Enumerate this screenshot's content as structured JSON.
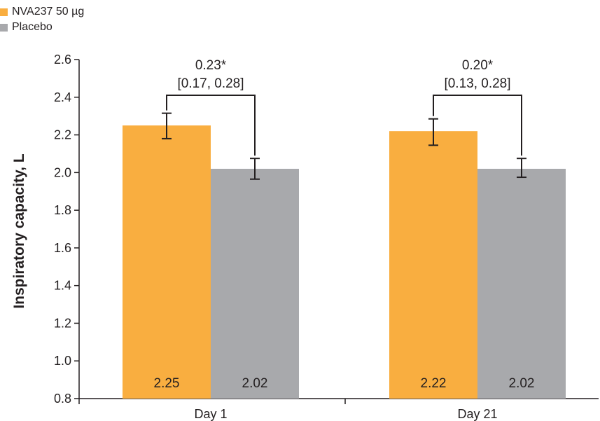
{
  "chart_data": {
    "type": "bar",
    "categories": [
      "Day 1",
      "Day 21"
    ],
    "series": [
      {
        "name": "NVA237 50 µg",
        "color": "#f9ae40",
        "values": [
          2.25,
          2.22
        ],
        "value_labels": [
          "2.25",
          "2.22"
        ],
        "error_low": [
          2.18,
          2.145
        ],
        "error_high": [
          2.315,
          2.285
        ]
      },
      {
        "name": "Placebo",
        "color": "#a8a9ac",
        "values": [
          2.02,
          2.02
        ],
        "value_labels": [
          "2.02",
          "2.02"
        ],
        "error_low": [
          1.965,
          1.975
        ],
        "error_high": [
          2.075,
          2.075
        ]
      }
    ],
    "ylabel": "Inspiratory capacity, L",
    "xlabel": "",
    "ylim": [
      0.8,
      2.6
    ],
    "yticks": [
      "0.8",
      "1.0",
      "1.2",
      "1.4",
      "1.6",
      "1.8",
      "2.0",
      "2.2",
      "2.4",
      "2.6"
    ],
    "annotations": [
      {
        "category": "Day 1",
        "difference": "0.23*",
        "ci": "[0.17, 0.28]"
      },
      {
        "category": "Day 21",
        "difference": "0.20*",
        "ci": "[0.13, 0.28]"
      }
    ],
    "grid": false,
    "legend_position": "top-left"
  }
}
